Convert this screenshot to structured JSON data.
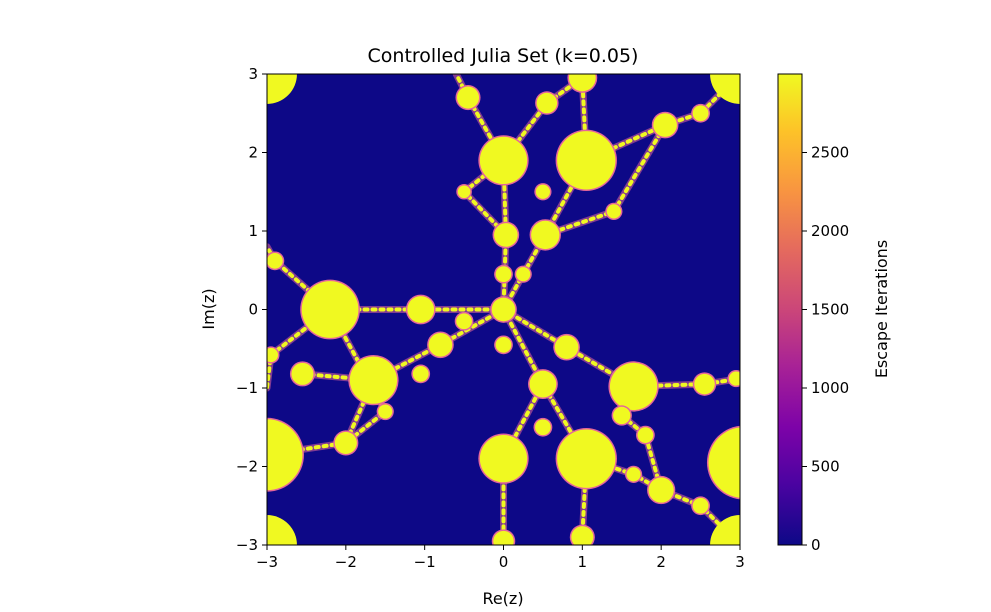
{
  "chart_data": {
    "type": "heatmap",
    "title": "Controlled Julia Set (k=0.05)",
    "xlabel": "Re(z)",
    "ylabel": "Im(z)",
    "xlim": [
      -3,
      3
    ],
    "ylim": [
      -3,
      3
    ],
    "x_ticks": [
      "−3",
      "−2",
      "−1",
      "0",
      "1",
      "2",
      "3"
    ],
    "y_ticks": [
      "−3",
      "−2",
      "−1",
      "0",
      "1",
      "2",
      "3"
    ],
    "x_tick_values": [
      -3,
      -2,
      -1,
      0,
      1,
      2,
      3
    ],
    "y_tick_values": [
      -3,
      -2,
      -1,
      0,
      1,
      2,
      3
    ],
    "colorbar": {
      "label": "Escape Iterations",
      "range": [
        0,
        3000
      ],
      "ticks": [
        "0",
        "500",
        "1000",
        "1500",
        "2000",
        "2500"
      ],
      "tick_values": [
        0,
        500,
        1000,
        1500,
        2000,
        2500
      ],
      "colormap": "plasma"
    },
    "background_color": "#0d0887",
    "fill_color": "#f0f921",
    "edge_color": "#e4669a",
    "grid": false,
    "features": [
      {
        "re": 0.0,
        "im": 1.9,
        "r": 0.3
      },
      {
        "re": 1.05,
        "im": 1.9,
        "r": 0.37
      },
      {
        "re": -2.2,
        "im": 0.0,
        "r": 0.36
      },
      {
        "re": -1.65,
        "im": -0.9,
        "r": 0.3
      },
      {
        "re": 1.65,
        "im": -0.98,
        "r": 0.3
      },
      {
        "re": 1.05,
        "im": -1.9,
        "r": 0.37
      },
      {
        "re": 0.0,
        "im": -1.9,
        "r": 0.3
      },
      {
        "re": -3.0,
        "im": -1.85,
        "r": 0.45
      },
      {
        "re": 3.05,
        "im": -1.95,
        "r": 0.45
      },
      {
        "re": 0.03,
        "im": 0.95,
        "r": 0.15
      },
      {
        "re": 0.53,
        "im": 0.95,
        "r": 0.18
      },
      {
        "re": 0.0,
        "im": 0.0,
        "r": 0.15
      },
      {
        "re": 0.0,
        "im": 0.45,
        "r": 0.1
      },
      {
        "re": 0.25,
        "im": 0.45,
        "r": 0.09
      },
      {
        "re": -1.05,
        "im": 0.0,
        "r": 0.17
      },
      {
        "re": -0.5,
        "im": -0.15,
        "r": 0.1
      },
      {
        "re": -0.8,
        "im": -0.45,
        "r": 0.15
      },
      {
        "re": 0.8,
        "im": -0.48,
        "r": 0.15
      },
      {
        "re": 0.5,
        "im": -0.95,
        "r": 0.17
      },
      {
        "re": 0.0,
        "im": -0.45,
        "r": 0.1
      },
      {
        "re": -0.45,
        "im": 2.7,
        "r": 0.14
      },
      {
        "re": 0.55,
        "im": 2.63,
        "r": 0.13
      },
      {
        "re": 1.0,
        "im": 2.95,
        "r": 0.17
      },
      {
        "re": 2.05,
        "im": 2.35,
        "r": 0.15
      },
      {
        "re": 2.5,
        "im": 2.5,
        "r": 0.1
      },
      {
        "re": -2.0,
        "im": -1.7,
        "r": 0.14
      },
      {
        "re": -2.55,
        "im": -0.82,
        "r": 0.14
      },
      {
        "re": -1.05,
        "im": -0.82,
        "r": 0.1
      },
      {
        "re": -2.9,
        "im": 0.62,
        "r": 0.1
      },
      {
        "re": -2.95,
        "im": -0.58,
        "r": 0.09
      },
      {
        "re": 2.55,
        "im": -0.95,
        "r": 0.13
      },
      {
        "re": 2.95,
        "im": -0.88,
        "r": 0.09
      },
      {
        "re": 2.0,
        "im": -2.3,
        "r": 0.16
      },
      {
        "re": 2.5,
        "im": -2.5,
        "r": 0.1
      },
      {
        "re": 1.5,
        "im": -1.35,
        "r": 0.11
      },
      {
        "re": 0.5,
        "im": -1.5,
        "r": 0.1
      },
      {
        "re": -0.5,
        "im": 1.5,
        "r": 0.08
      },
      {
        "re": 0.5,
        "im": 1.5,
        "r": 0.09
      },
      {
        "re": 1.4,
        "im": 1.25,
        "r": 0.09
      },
      {
        "re": -1.5,
        "im": -1.3,
        "r": 0.09
      },
      {
        "re": 0.0,
        "im": -2.95,
        "r": 0.13
      },
      {
        "re": 1.0,
        "im": -2.9,
        "r": 0.14
      },
      {
        "re": 1.8,
        "im": -1.6,
        "r": 0.1
      },
      {
        "re": 1.65,
        "im": -2.1,
        "r": 0.09
      }
    ],
    "corner_features": [
      {
        "re": -3.0,
        "im": 3.0
      },
      {
        "re": 3.0,
        "im": 3.0
      },
      {
        "re": -3.0,
        "im": -3.0
      },
      {
        "re": 3.0,
        "im": -3.0
      }
    ],
    "branch_chains": [
      [
        [
          0.0,
          0.0
        ],
        [
          0.03,
          0.95
        ],
        [
          0.0,
          1.9
        ],
        [
          -0.45,
          2.7
        ],
        [
          -0.6,
          3.0
        ]
      ],
      [
        [
          0.0,
          0.0
        ],
        [
          0.53,
          0.95
        ],
        [
          1.05,
          1.9
        ],
        [
          2.05,
          2.35
        ],
        [
          2.5,
          2.5
        ],
        [
          3.0,
          3.0
        ]
      ],
      [
        [
          1.05,
          1.9
        ],
        [
          1.0,
          2.95
        ]
      ],
      [
        [
          0.0,
          1.9
        ],
        [
          0.55,
          2.63
        ],
        [
          1.0,
          2.95
        ]
      ],
      [
        [
          0.0,
          0.0
        ],
        [
          -1.05,
          0.0
        ],
        [
          -2.2,
          0.0
        ],
        [
          -2.9,
          0.62
        ],
        [
          -3.0,
          0.8
        ]
      ],
      [
        [
          -2.2,
          0.0
        ],
        [
          -2.95,
          -0.58
        ],
        [
          -3.0,
          -1.0
        ]
      ],
      [
        [
          0.0,
          0.0
        ],
        [
          -0.8,
          -0.45
        ],
        [
          -1.65,
          -0.9
        ],
        [
          -2.55,
          -0.82
        ]
      ],
      [
        [
          -1.65,
          -0.9
        ],
        [
          -2.0,
          -1.7
        ],
        [
          -3.0,
          -1.85
        ]
      ],
      [
        [
          0.0,
          0.0
        ],
        [
          0.8,
          -0.48
        ],
        [
          1.65,
          -0.98
        ],
        [
          2.55,
          -0.95
        ],
        [
          3.0,
          -0.88
        ]
      ],
      [
        [
          1.65,
          -0.98
        ],
        [
          1.5,
          -1.35
        ],
        [
          1.8,
          -1.6
        ],
        [
          2.0,
          -2.3
        ],
        [
          2.5,
          -2.5
        ],
        [
          3.0,
          -3.0
        ]
      ],
      [
        [
          0.0,
          0.0
        ],
        [
          0.5,
          -0.95
        ],
        [
          1.05,
          -1.9
        ],
        [
          1.0,
          -2.9
        ]
      ],
      [
        [
          0.5,
          -0.95
        ],
        [
          0.0,
          -1.9
        ],
        [
          0.0,
          -2.95
        ]
      ],
      [
        [
          1.05,
          -1.9
        ],
        [
          1.65,
          -2.1
        ],
        [
          2.0,
          -2.3
        ]
      ],
      [
        [
          0.0,
          1.9
        ],
        [
          -0.5,
          1.5
        ],
        [
          0.03,
          0.95
        ]
      ],
      [
        [
          0.53,
          0.95
        ],
        [
          1.4,
          1.25
        ],
        [
          2.05,
          2.35
        ]
      ],
      [
        [
          -2.2,
          0.0
        ],
        [
          -1.5,
          -1.3
        ],
        [
          -2.0,
          -1.7
        ]
      ]
    ]
  }
}
